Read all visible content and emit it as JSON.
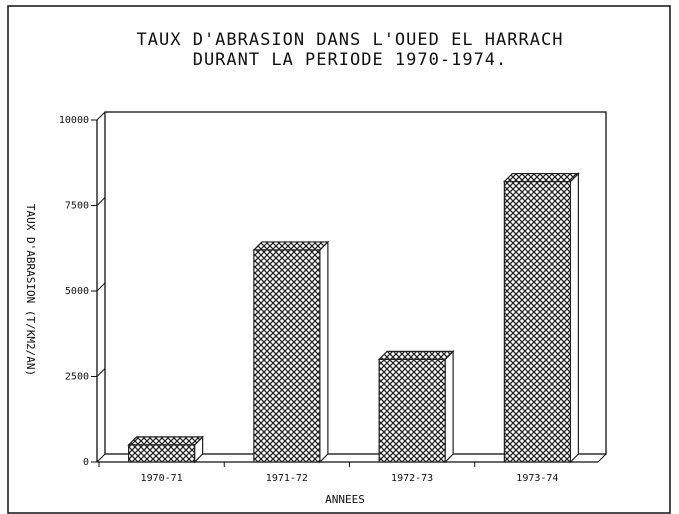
{
  "chart_data": {
    "type": "bar",
    "title": "TAUX D'ABRASION DANS L'OUED EL HARRACH",
    "subtitle": "DURANT LA PERIODE 1970-1974.",
    "x_label": "ANNEES",
    "y_label": "TAUX D'ABRASION (T/KM2/AN)",
    "categories": [
      "1970-71",
      "1971-72",
      "1972-73",
      "1973-74"
    ],
    "values": [
      500,
      6200,
      3000,
      8200
    ],
    "color": "#222222",
    "ylim": [
      0,
      10000
    ],
    "yticks": [
      0,
      2500,
      5000,
      7500,
      10000
    ]
  }
}
